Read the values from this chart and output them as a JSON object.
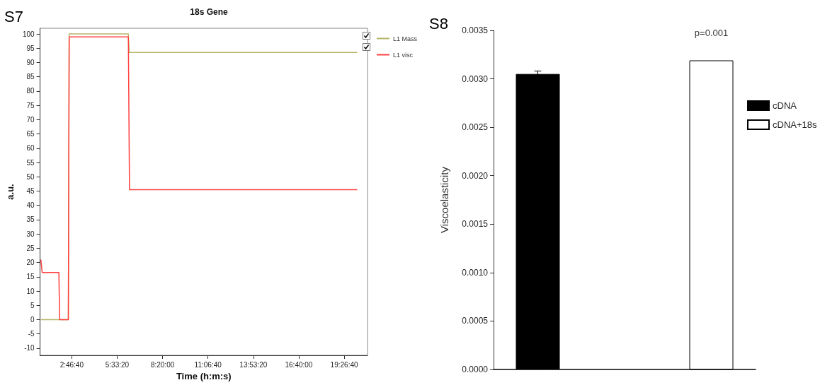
{
  "chart_data": [
    {
      "type": "line",
      "title": "18s Gene",
      "xlabel": "Time (h:m:s)",
      "ylabel": "a.u.",
      "annotations": [
        "S7"
      ],
      "legend": "top right",
      "marker": "none",
      "line_style": "solid",
      "grid": false,
      "xlim": [
        0.84,
        20.87
      ],
      "xticks": [
        {
          "value": 2.7778,
          "label": "2:46:40"
        },
        {
          "value": 5.5556,
          "label": "5:33:20"
        },
        {
          "value": 8.3333,
          "label": "8:20:00"
        },
        {
          "value": 11.1111,
          "label": "11:06:40"
        },
        {
          "value": 13.8889,
          "label": "13:53:20"
        },
        {
          "value": 16.6667,
          "label": "16:40:00"
        },
        {
          "value": 19.4444,
          "label": "19:26:40"
        }
      ],
      "ylim": [
        -12.5,
        102
      ],
      "yticks": [
        -10,
        -5,
        0,
        5,
        10,
        15,
        20,
        25,
        30,
        35,
        40,
        45,
        50,
        55,
        60,
        65,
        70,
        75,
        80,
        85,
        90,
        95,
        100
      ],
      "series": [
        {
          "name": "L1 Mass",
          "color": "#b5b56a",
          "x": [
            0.887,
            2.57,
            2.62,
            6.24,
            6.29,
            20.24
          ],
          "values": [
            0,
            0,
            100,
            100,
            93.5,
            93.5
          ]
        },
        {
          "name": "L1 visc",
          "color": "#ff4040",
          "x": [
            0.887,
            0.97,
            1.99,
            2.04,
            2.57,
            2.62,
            6.24,
            6.31,
            20.24
          ],
          "values": [
            21,
            16.5,
            16.5,
            0,
            0,
            99,
            99,
            45.5,
            45.5
          ]
        }
      ]
    },
    {
      "type": "bar",
      "ylabel": "Viscoelasticity",
      "annotations": [
        "S8",
        "p=0.001"
      ],
      "legend": "top right",
      "grid": false,
      "categories": [
        null
      ],
      "ylim": [
        0,
        0.0035
      ],
      "yticks": [
        {
          "value": 0,
          "label": "0.0000"
        },
        {
          "value": 0.0005,
          "label": "0.0005"
        },
        {
          "value": 0.001,
          "label": "0.0010"
        },
        {
          "value": 0.0015,
          "label": "0.0015"
        },
        {
          "value": 0.002,
          "label": "0.0020"
        },
        {
          "value": 0.0025,
          "label": "0.0025"
        },
        {
          "value": 0.003,
          "label": "0.0030"
        },
        {
          "value": 0.0035,
          "label": "0.0035"
        }
      ],
      "series": [
        {
          "name": "cDNA",
          "color": "#000000",
          "values": [
            0.00305
          ],
          "errors": [
            3e-05
          ]
        },
        {
          "name": "cDNA+18s",
          "color": "#ffffff",
          "values": [
            0.00319
          ]
        }
      ]
    }
  ]
}
